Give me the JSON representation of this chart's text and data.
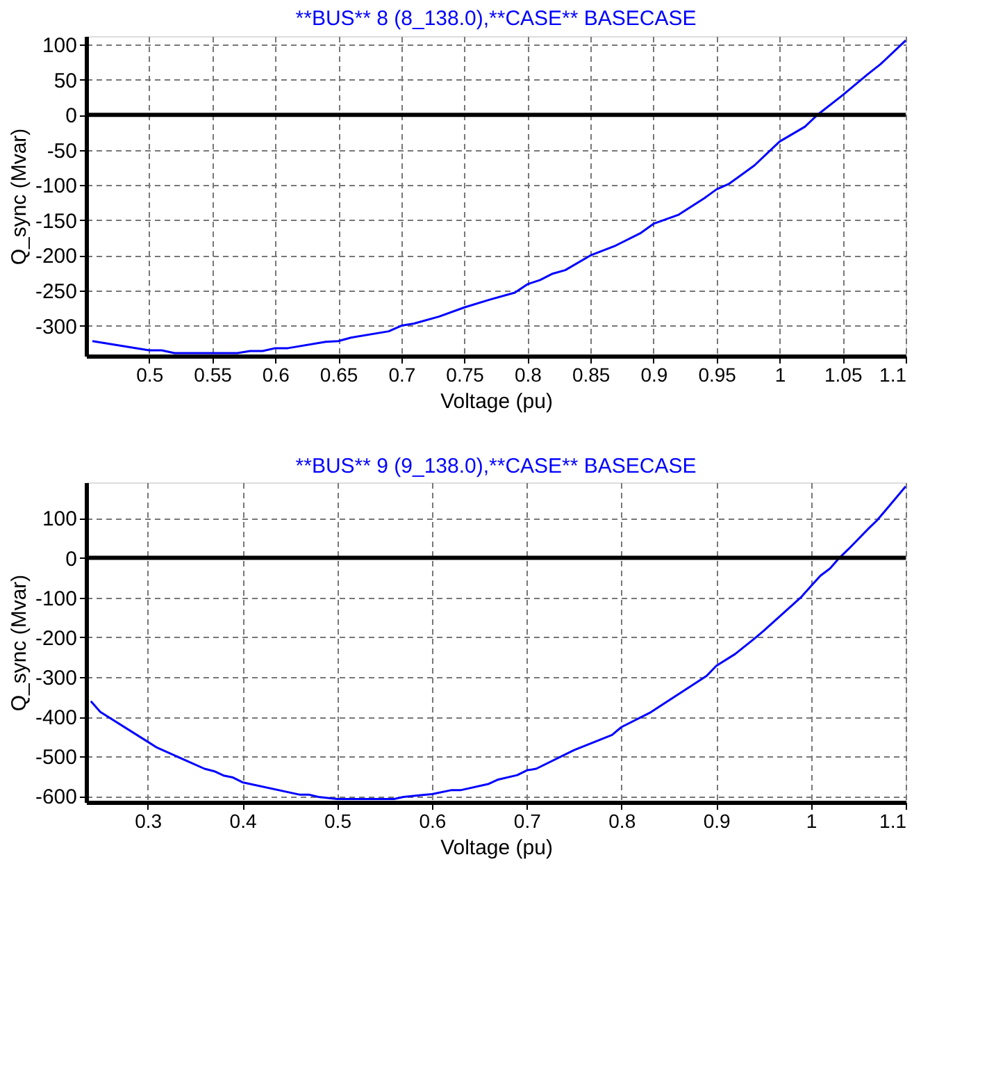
{
  "chart_data": [
    {
      "type": "line",
      "title": "**BUS** 8 (8_138.0),**CASE** BASECASE",
      "xlabel": "Voltage (pu)",
      "ylabel": "Q_sync (Mvar)",
      "x": [
        0.455,
        0.5,
        0.51,
        0.52,
        0.57,
        0.58,
        0.59,
        0.6,
        0.61,
        0.64,
        0.65,
        0.66,
        0.69,
        0.7,
        0.71,
        0.73,
        0.75,
        0.77,
        0.79,
        0.8,
        0.81,
        0.82,
        0.83,
        0.85,
        0.87,
        0.89,
        0.9,
        0.92,
        0.94,
        0.95,
        0.96,
        0.98,
        1.0,
        1.02,
        1.03,
        1.05,
        1.07,
        1.08,
        1.1
      ],
      "series": [
        {
          "color": "#0000ff",
          "values": [
            -322,
            -335,
            -335,
            -339,
            -339,
            -336,
            -336,
            -332,
            -332,
            -323,
            -322,
            -317,
            -308,
            -300,
            -297,
            -287,
            -274,
            -263,
            -253,
            -241,
            -235,
            -226,
            -221,
            -200,
            -186,
            -168,
            -155,
            -142,
            -119,
            -106,
            -98,
            -72,
            -38,
            -17,
            0,
            28,
            58,
            72,
            106
          ]
        }
      ],
      "xlim": [
        0.45,
        1.1
      ],
      "ylim": [
        -343,
        112
      ],
      "xticks": [
        0.5,
        0.55,
        0.6,
        0.65,
        0.7,
        0.75,
        0.8,
        0.85,
        0.9,
        0.95,
        1,
        1.05,
        1.1
      ],
      "yticks": [
        -300,
        -250,
        -200,
        -150,
        -100,
        -50,
        0,
        50,
        100
      ],
      "ref_lines": [
        {
          "axis": "y",
          "value": 0,
          "color": "#000000"
        }
      ],
      "grid": true,
      "marker": "none",
      "line_style": "solid"
    },
    {
      "type": "line",
      "title": "**BUS** 9 (9_138.0),**CASE** BASECASE",
      "xlabel": "Voltage (pu)",
      "ylabel": "Q_sync (Mvar)",
      "x": [
        0.24,
        0.25,
        0.3,
        0.31,
        0.36,
        0.37,
        0.38,
        0.39,
        0.4,
        0.46,
        0.47,
        0.48,
        0.5,
        0.56,
        0.57,
        0.59,
        0.6,
        0.62,
        0.63,
        0.66,
        0.67,
        0.69,
        0.7,
        0.71,
        0.75,
        0.79,
        0.8,
        0.83,
        0.89,
        0.9,
        0.92,
        0.94,
        0.95,
        0.99,
        1.0,
        1.01,
        1.02,
        1.03,
        1.04,
        1.06,
        1.07,
        1.1
      ],
      "series": [
        {
          "color": "#0000ff",
          "values": [
            -361,
            -388,
            -463,
            -478,
            -531,
            -537,
            -548,
            -553,
            -565,
            -596,
            -596,
            -602,
            -607,
            -607,
            -602,
            -597,
            -595,
            -585,
            -585,
            -569,
            -558,
            -547,
            -535,
            -531,
            -484,
            -446,
            -426,
            -390,
            -297,
            -272,
            -242,
            -204,
            -184,
            -98,
            -71,
            -45,
            -27,
            0,
            23,
            72,
            95,
            180
          ]
        }
      ],
      "xlim": [
        0.235,
        1.1
      ],
      "ylim": [
        -615,
        190
      ],
      "xticks": [
        0.3,
        0.4,
        0.5,
        0.6,
        0.7,
        0.8,
        0.9,
        1,
        1.1
      ],
      "yticks": [
        -600,
        -500,
        -400,
        -300,
        -200,
        -100,
        0,
        100
      ],
      "ref_lines": [
        {
          "axis": "y",
          "value": 0,
          "color": "#000000"
        }
      ],
      "grid": true,
      "marker": "none",
      "line_style": "solid"
    }
  ]
}
